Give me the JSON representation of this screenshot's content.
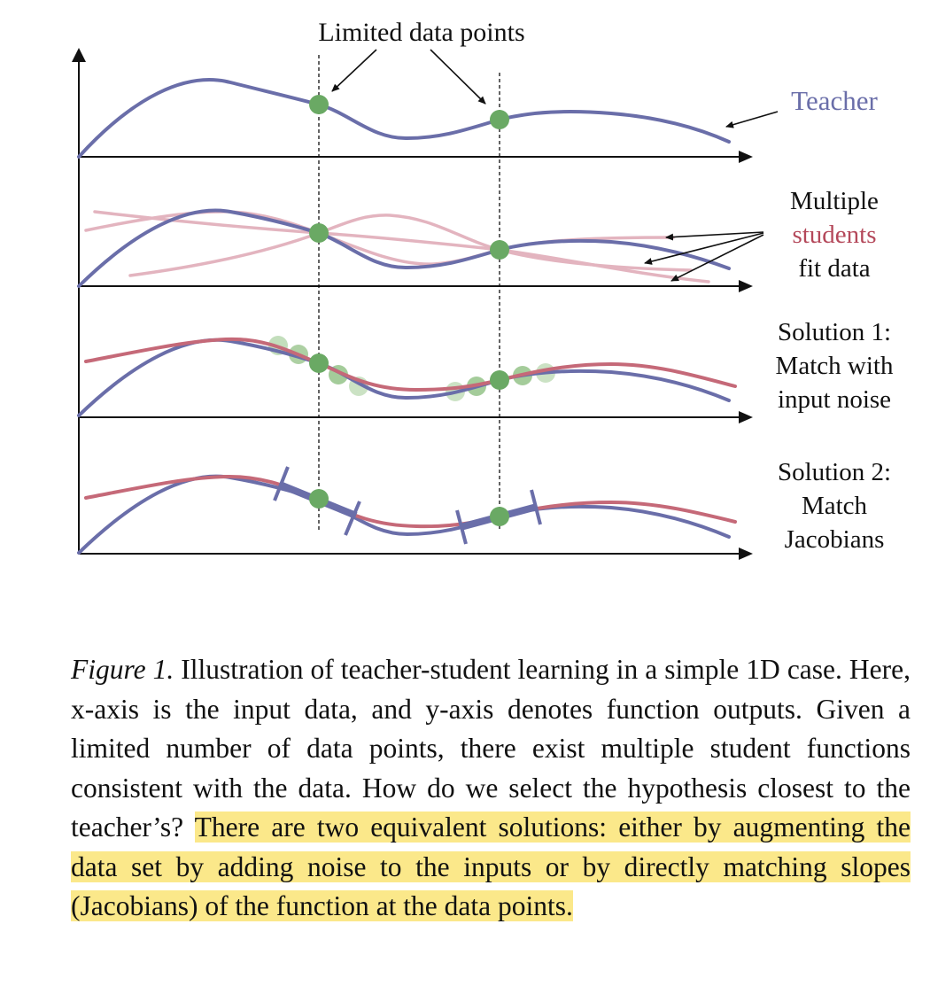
{
  "figure": {
    "top_label": "Limited data points",
    "teacher_label": "Teacher",
    "panel2_label": {
      "line1": "Multiple",
      "line2": "students",
      "line3": "fit data"
    },
    "panel3_label": {
      "line1": "Solution 1:",
      "line2": "Match with",
      "line3": "input noise"
    },
    "panel4_label": {
      "line1": "Solution 2:",
      "line2": "Match",
      "line3": "Jacobians"
    },
    "colors": {
      "teacher": "#6a6ea9",
      "student": "#c56978",
      "student_faint": "#e3b4bf",
      "data_point": "#6aa964",
      "noise_point": "#b9d8b0",
      "highlight": "#fbe88a"
    }
  },
  "caption": {
    "label": "Figure 1.",
    "text": " Illustration of teacher-student learning in a simple 1D case. Here, x-axis is the input data, and y-axis denotes function outputs. Given a limited number of data points, there exist multiple student functions consistent with the data. How do we select the hypothesis closest to the teacher’s? ",
    "highlighted": "There are two equivalent solutions: either by augmenting the data set by adding noise to the inputs or by directly matching slopes (Jacobians) of the function at the data points."
  }
}
